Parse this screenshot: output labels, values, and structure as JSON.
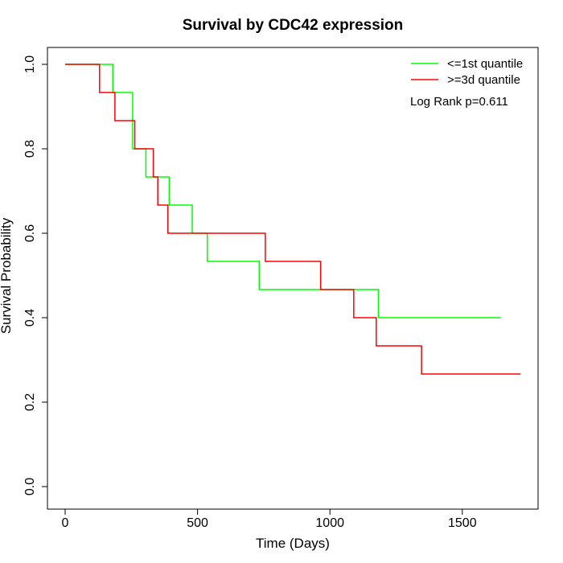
{
  "chart_data": {
    "type": "line",
    "title": "Survival by CDC42 expression",
    "xlabel": "Time (Days)",
    "ylabel": "Survival Probability",
    "xlim": [
      0,
      1720
    ],
    "ylim": [
      0,
      1.0
    ],
    "x_ticks": [
      "0",
      "500",
      "1000",
      "1500"
    ],
    "x_tick_values": [
      0,
      500,
      1000,
      1500
    ],
    "y_ticks": [
      "0.0",
      "0.2",
      "0.4",
      "0.6",
      "0.8",
      "1.0"
    ],
    "y_tick_values": [
      0,
      0.2,
      0.4,
      0.6,
      0.8,
      1.0
    ],
    "grid": false,
    "legend_position": "top-right",
    "annotation": "Log Rank p=0.611",
    "series": [
      {
        "name": "<=1st quantile",
        "color": "#00ff00",
        "step": true,
        "x": [
          0,
          180,
          255,
          305,
          393,
          480,
          537,
          733,
          1183,
          1645
        ],
        "y": [
          1.0,
          0.9333,
          0.8,
          0.7333,
          0.6667,
          0.6,
          0.5333,
          0.4667,
          0.4,
          0.4
        ]
      },
      {
        "name": ">=3d quantile",
        "color": "#ff0000",
        "step": true,
        "x": [
          0,
          130,
          188,
          263,
          333,
          350,
          388,
          756,
          965,
          1090,
          1175,
          1346,
          1720
        ],
        "y": [
          1.0,
          0.9333,
          0.8667,
          0.8,
          0.7333,
          0.6667,
          0.6,
          0.5333,
          0.4667,
          0.4,
          0.3333,
          0.2667,
          0.2667
        ]
      }
    ]
  }
}
